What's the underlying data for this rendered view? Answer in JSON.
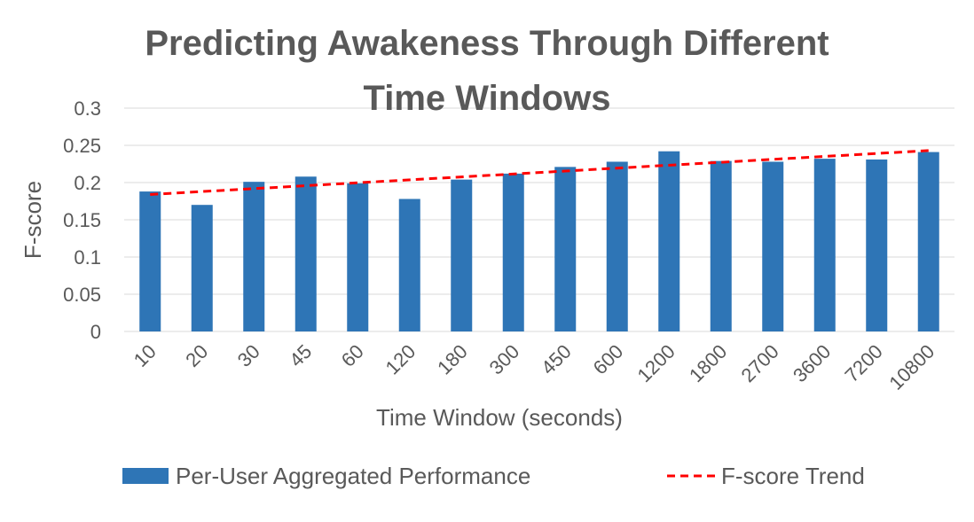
{
  "chart_data": {
    "type": "bar",
    "title_lines": [
      "Predicting Awakeness Through Different",
      "Time Windows"
    ],
    "xlabel": "Time Window (seconds)",
    "ylabel": "F-score",
    "categories": [
      "10",
      "20",
      "30",
      "45",
      "60",
      "120",
      "180",
      "300",
      "450",
      "600",
      "1200",
      "1800",
      "2700",
      "3600",
      "7200",
      "10800"
    ],
    "series": [
      {
        "name": "Per-User Aggregated Performance",
        "color": "#2e75b6",
        "values": [
          0.188,
          0.17,
          0.201,
          0.208,
          0.199,
          0.178,
          0.204,
          0.212,
          0.221,
          0.228,
          0.242,
          0.229,
          0.228,
          0.232,
          0.231,
          0.241
        ]
      }
    ],
    "trend": {
      "name": "F-score Trend",
      "color": "#ff0000",
      "style": "dashed",
      "start": 0.184,
      "end": 0.243
    },
    "ylim": [
      0,
      0.3
    ],
    "yticks": [
      "0",
      "0.05",
      "0.1",
      "0.15",
      "0.2",
      "0.25",
      "0.3"
    ],
    "grid": true,
    "legend_position": "bottom"
  }
}
